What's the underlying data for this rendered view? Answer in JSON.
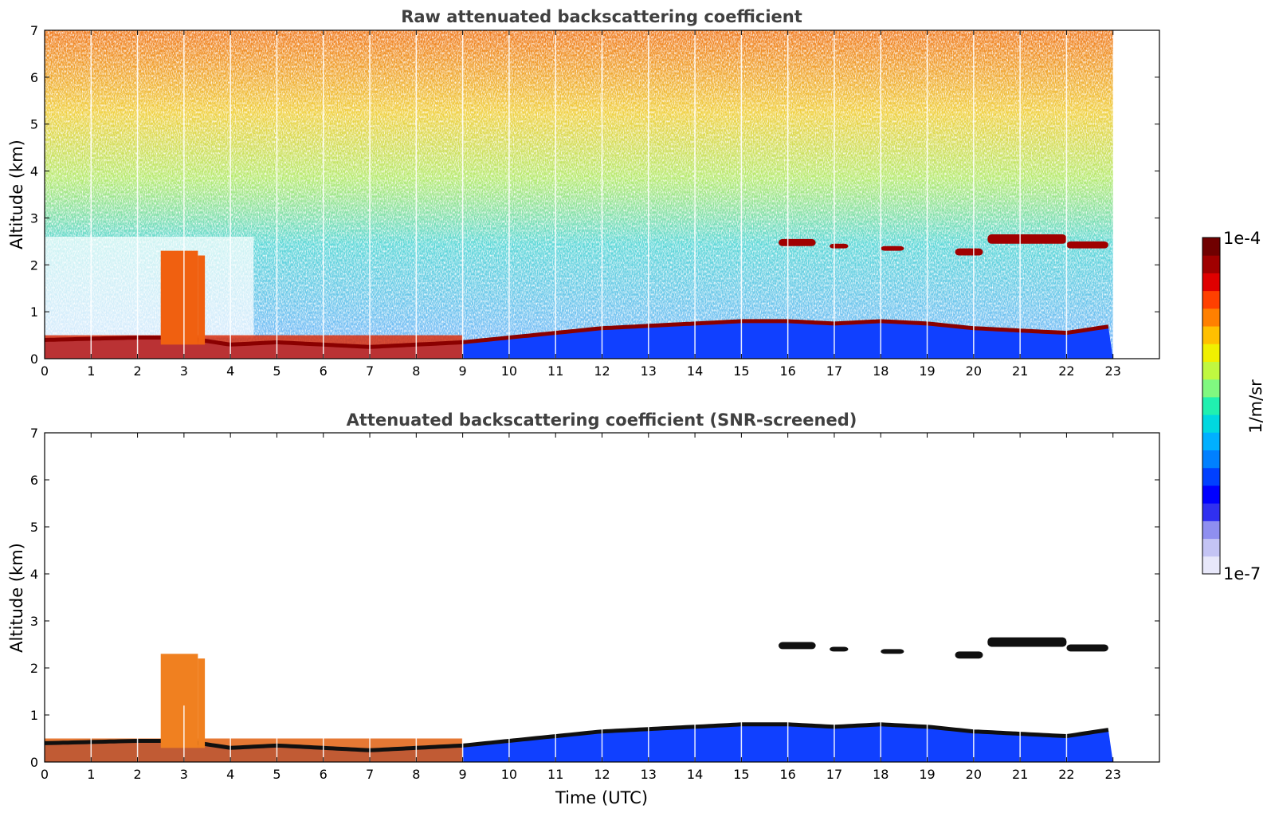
{
  "chart_data": [
    {
      "type": "heatmap",
      "title": "Raw attenuated backscattering coefficient",
      "xlabel": "",
      "ylabel": "Altitude (km)",
      "xlim": [
        0,
        24
      ],
      "ylim": [
        0,
        7
      ],
      "x_ticks": [
        "0",
        "1",
        "2",
        "3",
        "4",
        "5",
        "6",
        "7",
        "8",
        "9",
        "10",
        "11",
        "12",
        "13",
        "14",
        "15",
        "16",
        "17",
        "18",
        "19",
        "20",
        "21",
        "22",
        "23"
      ],
      "y_ticks": [
        "0",
        "1",
        "2",
        "3",
        "4",
        "5",
        "6",
        "7"
      ],
      "data_extent_hours": [
        0,
        23
      ],
      "boundary_layer_top_km": [
        [
          0,
          0.4
        ],
        [
          2,
          0.45
        ],
        [
          3,
          0.45
        ],
        [
          4,
          0.3
        ],
        [
          5,
          0.35
        ],
        [
          6,
          0.3
        ],
        [
          7,
          0.25
        ],
        [
          8,
          0.3
        ],
        [
          9,
          0.35
        ],
        [
          10,
          0.45
        ],
        [
          11,
          0.55
        ],
        [
          12,
          0.65
        ],
        [
          13,
          0.7
        ],
        [
          14,
          0.75
        ],
        [
          15,
          0.8
        ],
        [
          16,
          0.8
        ],
        [
          17,
          0.75
        ],
        [
          18,
          0.8
        ],
        [
          19,
          0.75
        ],
        [
          20,
          0.65
        ],
        [
          21,
          0.6
        ],
        [
          22,
          0.55
        ],
        [
          23,
          0.7
        ]
      ],
      "cloud_layers": [
        {
          "t": [
            2.5,
            3.3
          ],
          "z": [
            0.3,
            2.3
          ]
        },
        {
          "t": [
            3.3,
            3.45
          ],
          "z": [
            0.3,
            2.2
          ]
        },
        {
          "t": [
            15.8,
            16.6
          ],
          "z": [
            2.4,
            2.55
          ]
        },
        {
          "t": [
            16.9,
            17.3
          ],
          "z": [
            2.35,
            2.45
          ]
        },
        {
          "t": [
            18.0,
            18.5
          ],
          "z": [
            2.3,
            2.4
          ]
        },
        {
          "t": [
            19.6,
            20.2
          ],
          "z": [
            2.2,
            2.35
          ]
        },
        {
          "t": [
            20.3,
            22.0
          ],
          "z": [
            2.45,
            2.65
          ]
        },
        {
          "t": [
            22.0,
            22.9
          ],
          "z": [
            2.35,
            2.5
          ]
        }
      ]
    },
    {
      "type": "heatmap",
      "title": "Attenuated backscattering coefficient (SNR-screened)",
      "xlabel": "Time (UTC)",
      "ylabel": "Altitude (km)",
      "xlim": [
        0,
        24
      ],
      "ylim": [
        0,
        7
      ],
      "x_ticks": [
        "0",
        "1",
        "2",
        "3",
        "4",
        "5",
        "6",
        "7",
        "8",
        "9",
        "10",
        "11",
        "12",
        "13",
        "14",
        "15",
        "16",
        "17",
        "18",
        "19",
        "20",
        "21",
        "22",
        "23"
      ],
      "y_ticks": [
        "0",
        "1",
        "2",
        "3",
        "4",
        "5",
        "6",
        "7"
      ],
      "data_extent_hours": [
        0,
        23
      ]
    }
  ],
  "colorbar": {
    "label": "1/m/sr",
    "min_label": "1e-7",
    "max_label": "1e-4",
    "scale": "log",
    "colors": [
      "#e8e8fa",
      "#c4c4f4",
      "#8f8ff0",
      "#3030f0",
      "#0000ff",
      "#0040ff",
      "#0080ff",
      "#00b0ff",
      "#00d8e0",
      "#20f0b0",
      "#80f880",
      "#c0f840",
      "#f0f000",
      "#ffc000",
      "#ff8000",
      "#ff4000",
      "#e00000",
      "#a00000",
      "#700000"
    ]
  }
}
